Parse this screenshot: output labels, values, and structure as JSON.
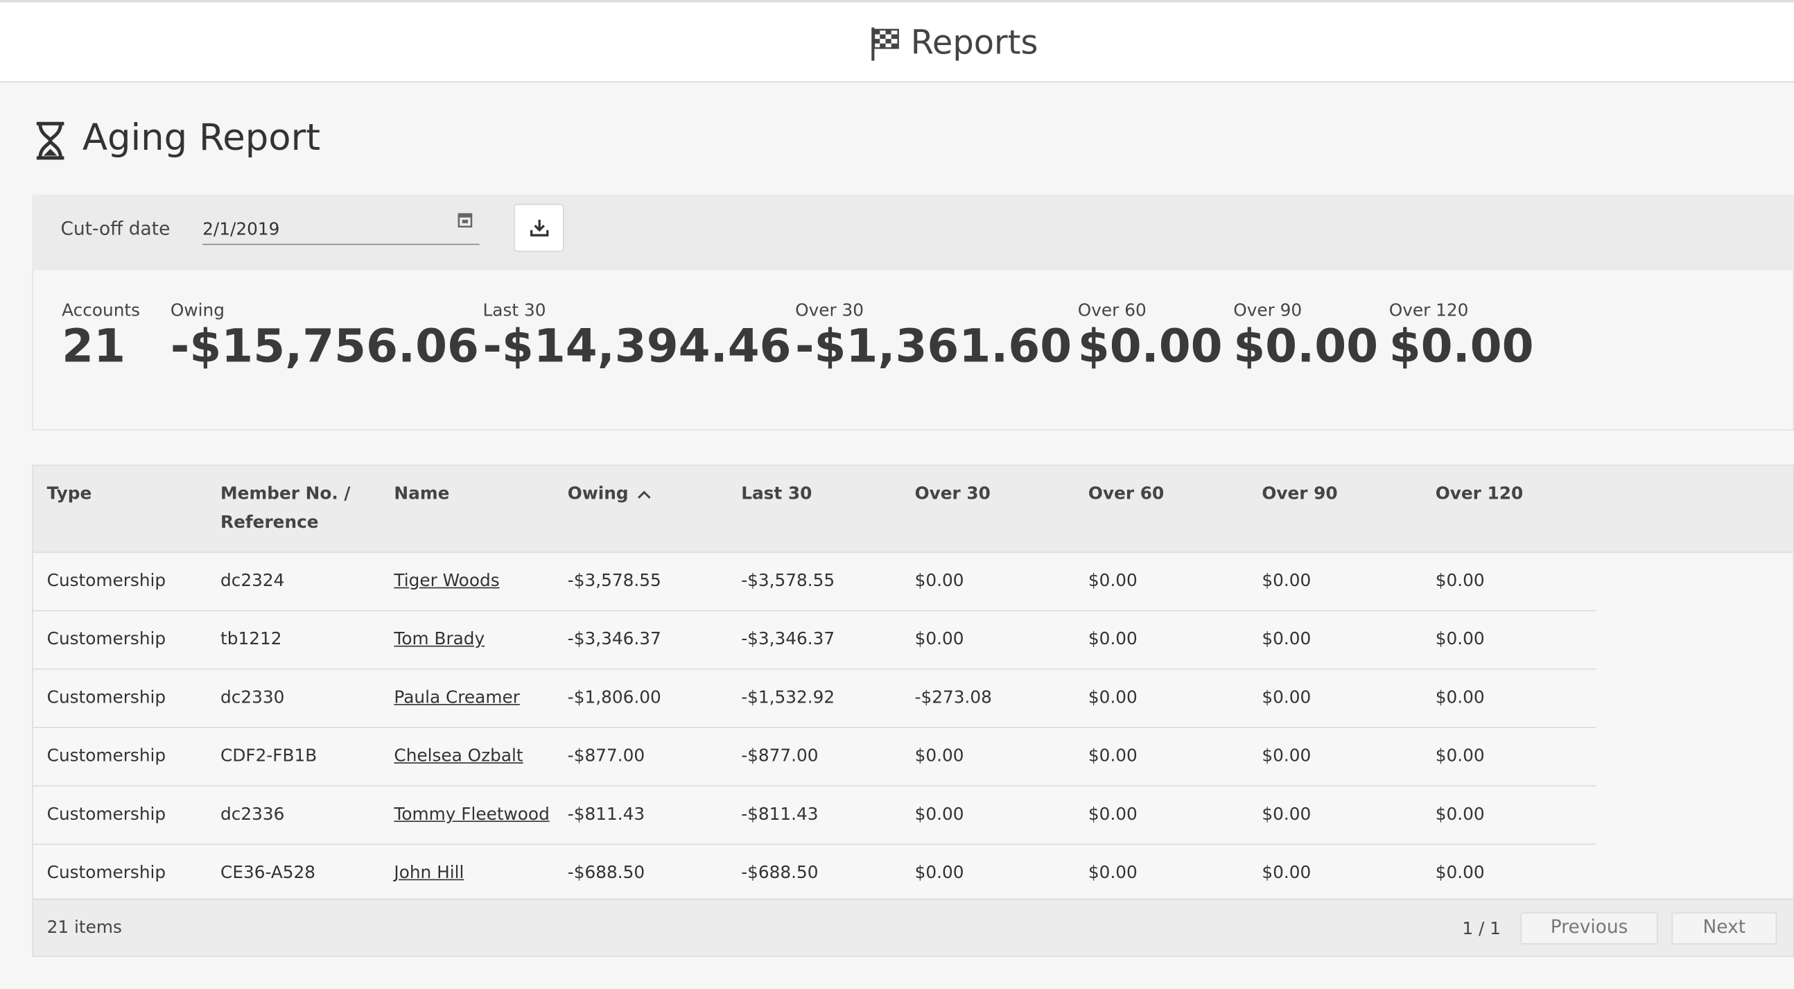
{
  "header": {
    "title": "Reports"
  },
  "report": {
    "title": "Aging Report"
  },
  "filter": {
    "label": "Cut-off date",
    "value": "2/1/2019"
  },
  "summary": [
    {
      "label": "Accounts",
      "value": "21"
    },
    {
      "label": "Owing",
      "value": "-$15,756.06"
    },
    {
      "label": "Last 30",
      "value": "-$14,394.46"
    },
    {
      "label": "Over 30",
      "value": "-$1,361.60"
    },
    {
      "label": "Over 60",
      "value": "$0.00"
    },
    {
      "label": "Over 90",
      "value": "$0.00"
    },
    {
      "label": "Over 120",
      "value": "$0.00"
    }
  ],
  "table": {
    "headers": [
      "Type",
      "Member No. / Reference",
      "Name",
      "Owing",
      "Last 30",
      "Over 30",
      "Over 60",
      "Over 90",
      "Over 120"
    ],
    "rows": [
      [
        "Customership",
        "dc2324",
        "Tiger Woods",
        "-$3,578.55",
        "-$3,578.55",
        "$0.00",
        "$0.00",
        "$0.00",
        "$0.00"
      ],
      [
        "Customership",
        "tb1212",
        "Tom Brady",
        "-$3,346.37",
        "-$3,346.37",
        "$0.00",
        "$0.00",
        "$0.00",
        "$0.00"
      ],
      [
        "Customership",
        "dc2330",
        "Paula Creamer",
        "-$1,806.00",
        "-$1,532.92",
        "-$273.08",
        "$0.00",
        "$0.00",
        "$0.00"
      ],
      [
        "Customership",
        "CDF2-FB1B",
        "Chelsea Ozbalt",
        "-$877.00",
        "-$877.00",
        "$0.00",
        "$0.00",
        "$0.00",
        "$0.00"
      ],
      [
        "Customership",
        "dc2336",
        "Tommy Fleetwood",
        "-$811.43",
        "-$811.43",
        "$0.00",
        "$0.00",
        "$0.00",
        "$0.00"
      ],
      [
        "Customership",
        "CE36-A528",
        "John Hill",
        "-$688.50",
        "-$688.50",
        "$0.00",
        "$0.00",
        "$0.00",
        "$0.00"
      ]
    ]
  },
  "footer": {
    "count": "21 items",
    "page": "1 / 1",
    "previous": "Previous",
    "next": "Next"
  }
}
